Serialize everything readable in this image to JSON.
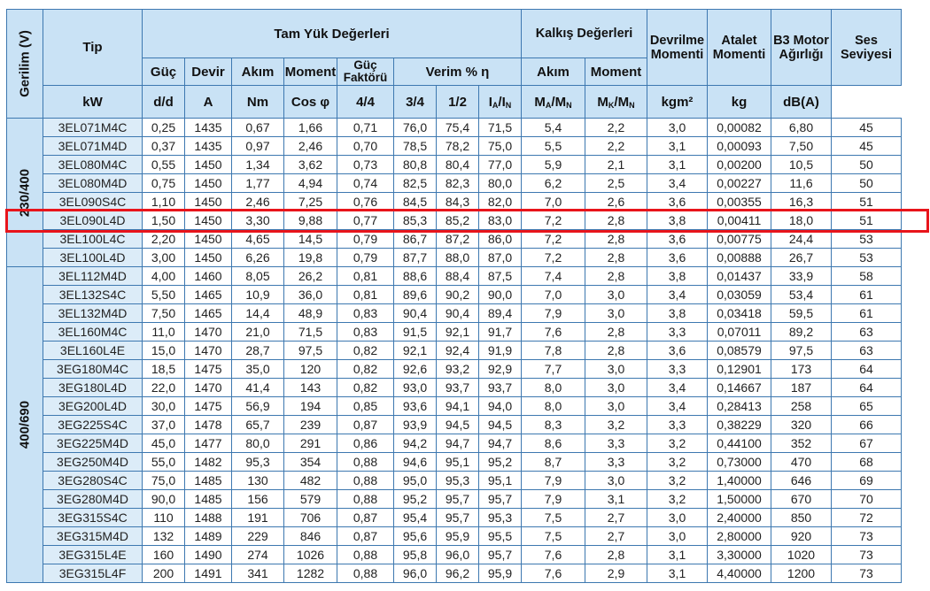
{
  "header": {
    "voltage": "Gerilim (V)",
    "tip": "Tip",
    "full_load": "Tam Yük Değerleri",
    "start_values": "Kalkış Değerleri",
    "breakdown_torque": "Devrilme Momenti",
    "inertia": "Atalet Momenti",
    "b3_weight": "B3 Motor Ağırlığı",
    "noise": "Ses Seviyesi",
    "power": "Güç",
    "speed": "Devir",
    "current": "Akım",
    "moment": "Moment",
    "power_factor": "Güç Faktörü",
    "efficiency": "Verim % η",
    "start_current": "Akım",
    "start_moment": "Moment",
    "units": {
      "kw": "kW",
      "dd": "d/d",
      "a": "A",
      "nm": "Nm",
      "cos": "Cos φ",
      "e44": "4/4",
      "e34": "3/4",
      "e12": "1/2",
      "ia_b": "I",
      "ia_s1": "A",
      "ia_m": "/I",
      "ia_s2": "N",
      "ma_b": "M",
      "ma_s1": "A",
      "ma_m": "/M",
      "ma_s2": "N",
      "mk_b": "M",
      "mk_s1": "K",
      "mk_m": "/M",
      "mk_s2": "N",
      "kgm2": "kgm²",
      "kg": "kg",
      "db": "dB(A)"
    }
  },
  "groups": [
    {
      "voltage": "230/400",
      "rows": [
        [
          "3EL071M4C",
          "0,25",
          "1435",
          "0,67",
          "1,66",
          "0,71",
          "76,0",
          "75,4",
          "71,5",
          "5,4",
          "2,2",
          "3,0",
          "0,00082",
          "6,80",
          "45"
        ],
        [
          "3EL071M4D",
          "0,37",
          "1435",
          "0,97",
          "2,46",
          "0,70",
          "78,5",
          "78,2",
          "75,0",
          "5,5",
          "2,2",
          "3,1",
          "0,00093",
          "7,50",
          "45"
        ],
        [
          "3EL080M4C",
          "0,55",
          "1450",
          "1,34",
          "3,62",
          "0,73",
          "80,8",
          "80,4",
          "77,0",
          "5,9",
          "2,1",
          "3,1",
          "0,00200",
          "10,5",
          "50"
        ],
        [
          "3EL080M4D",
          "0,75",
          "1450",
          "1,77",
          "4,94",
          "0,74",
          "82,5",
          "82,3",
          "80,0",
          "6,2",
          "2,5",
          "3,4",
          "0,00227",
          "11,6",
          "50"
        ],
        [
          "3EL090S4C",
          "1,10",
          "1450",
          "2,46",
          "7,25",
          "0,76",
          "84,5",
          "84,3",
          "82,0",
          "7,0",
          "2,6",
          "3,6",
          "0,00355",
          "16,3",
          "51"
        ],
        [
          "3EL090L4D",
          "1,50",
          "1450",
          "3,30",
          "9,88",
          "0,77",
          "85,3",
          "85,2",
          "83,0",
          "7,2",
          "2,8",
          "3,8",
          "0,00411",
          "18,0",
          "51"
        ],
        [
          "3EL100L4C",
          "2,20",
          "1450",
          "4,65",
          "14,5",
          "0,79",
          "86,7",
          "87,2",
          "86,0",
          "7,2",
          "2,8",
          "3,6",
          "0,00775",
          "24,4",
          "53"
        ],
        [
          "3EL100L4D",
          "3,00",
          "1450",
          "6,26",
          "19,8",
          "0,79",
          "87,7",
          "88,0",
          "87,0",
          "7,2",
          "2,8",
          "3,6",
          "0,00888",
          "26,7",
          "53"
        ]
      ]
    },
    {
      "voltage": "400/690",
      "rows": [
        [
          "3EL112M4D",
          "4,00",
          "1460",
          "8,05",
          "26,2",
          "0,81",
          "88,6",
          "88,4",
          "87,5",
          "7,4",
          "2,8",
          "3,8",
          "0,01437",
          "33,9",
          "58"
        ],
        [
          "3EL132S4C",
          "5,50",
          "1465",
          "10,9",
          "36,0",
          "0,81",
          "89,6",
          "90,2",
          "90,0",
          "7,0",
          "3,0",
          "3,4",
          "0,03059",
          "53,4",
          "61"
        ],
        [
          "3EL132M4D",
          "7,50",
          "1465",
          "14,4",
          "48,9",
          "0,83",
          "90,4",
          "90,4",
          "89,4",
          "7,9",
          "3,0",
          "3,8",
          "0,03418",
          "59,5",
          "61"
        ],
        [
          "3EL160M4C",
          "11,0",
          "1470",
          "21,0",
          "71,5",
          "0,83",
          "91,5",
          "92,1",
          "91,7",
          "7,6",
          "2,8",
          "3,3",
          "0,07011",
          "89,2",
          "63"
        ],
        [
          "3EL160L4E",
          "15,0",
          "1470",
          "28,7",
          "97,5",
          "0,82",
          "92,1",
          "92,4",
          "91,9",
          "7,8",
          "2,8",
          "3,6",
          "0,08579",
          "97,5",
          "63"
        ],
        [
          "3EG180M4C",
          "18,5",
          "1475",
          "35,0",
          "120",
          "0,82",
          "92,6",
          "93,2",
          "92,9",
          "7,7",
          "3,0",
          "3,3",
          "0,12901",
          "173",
          "64"
        ],
        [
          "3EG180L4D",
          "22,0",
          "1470",
          "41,4",
          "143",
          "0,82",
          "93,0",
          "93,7",
          "93,7",
          "8,0",
          "3,0",
          "3,4",
          "0,14667",
          "187",
          "64"
        ],
        [
          "3EG200L4D",
          "30,0",
          "1475",
          "56,9",
          "194",
          "0,85",
          "93,6",
          "94,1",
          "94,0",
          "8,0",
          "3,0",
          "3,4",
          "0,28413",
          "258",
          "65"
        ],
        [
          "3EG225S4C",
          "37,0",
          "1478",
          "65,7",
          "239",
          "0,87",
          "93,9",
          "94,5",
          "94,5",
          "8,3",
          "3,2",
          "3,3",
          "0,38229",
          "320",
          "66"
        ],
        [
          "3EG225M4D",
          "45,0",
          "1477",
          "80,0",
          "291",
          "0,86",
          "94,2",
          "94,7",
          "94,7",
          "8,6",
          "3,3",
          "3,2",
          "0,44100",
          "352",
          "67"
        ],
        [
          "3EG250M4D",
          "55,0",
          "1482",
          "95,3",
          "354",
          "0,88",
          "94,6",
          "95,1",
          "95,2",
          "8,7",
          "3,3",
          "3,2",
          "0,73000",
          "470",
          "68"
        ],
        [
          "3EG280S4C",
          "75,0",
          "1485",
          "130",
          "482",
          "0,88",
          "95,0",
          "95,3",
          "95,1",
          "7,9",
          "3,0",
          "3,2",
          "1,40000",
          "646",
          "69"
        ],
        [
          "3EG280M4D",
          "90,0",
          "1485",
          "156",
          "579",
          "0,88",
          "95,2",
          "95,7",
          "95,7",
          "7,9",
          "3,1",
          "3,2",
          "1,50000",
          "670",
          "70"
        ],
        [
          "3EG315S4C",
          "110",
          "1488",
          "191",
          "706",
          "0,87",
          "95,4",
          "95,7",
          "95,3",
          "7,5",
          "2,7",
          "3,0",
          "2,40000",
          "850",
          "72"
        ],
        [
          "3EG315M4D",
          "132",
          "1489",
          "229",
          "846",
          "0,87",
          "95,6",
          "95,9",
          "95,5",
          "7,5",
          "2,7",
          "3,0",
          "2,80000",
          "920",
          "73"
        ],
        [
          "3EG315L4E",
          "160",
          "1490",
          "274",
          "1026",
          "0,88",
          "95,8",
          "96,0",
          "95,7",
          "7,6",
          "2,8",
          "3,1",
          "3,30000",
          "1020",
          "73"
        ],
        [
          "3EG315L4F",
          "200",
          "1491",
          "341",
          "1282",
          "0,88",
          "96,0",
          "96,2",
          "95,9",
          "7,6",
          "2,9",
          "3,1",
          "4,40000",
          "1200",
          "73"
        ]
      ]
    }
  ],
  "highlight": {
    "group": 0,
    "row": 5,
    "tip": "3EL090L4D",
    "color": "#e8141b"
  },
  "colors": {
    "header_bg": "#c9e2f5",
    "tip_bg": "#dcecf8",
    "border": "#3d78b0"
  }
}
